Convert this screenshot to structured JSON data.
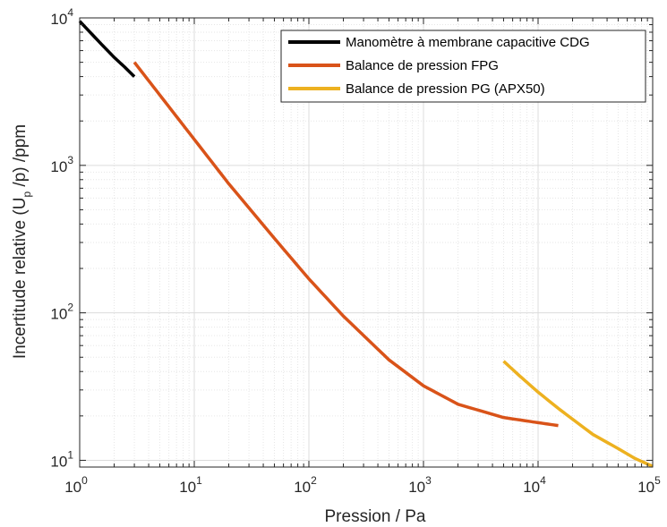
{
  "chart_data": {
    "type": "line",
    "xscale": "log",
    "yscale": "log",
    "xlim": [
      1,
      100000
    ],
    "ylim": [
      9,
      10000
    ],
    "xlabel": "Pression / Pa",
    "ylabel": {
      "prefix": "Incertitude relative (U",
      "subscript": "p",
      "suffix": " /p) /ppm"
    },
    "xticks": [
      {
        "base": "10",
        "exp": "0",
        "value": 1
      },
      {
        "base": "10",
        "exp": "1",
        "value": 10
      },
      {
        "base": "10",
        "exp": "2",
        "value": 100
      },
      {
        "base": "10",
        "exp": "3",
        "value": 1000
      },
      {
        "base": "10",
        "exp": "4",
        "value": 10000
      },
      {
        "base": "10",
        "exp": "5",
        "value": 100000
      }
    ],
    "yticks": [
      {
        "base": "10",
        "exp": "1",
        "value": 10
      },
      {
        "base": "10",
        "exp": "2",
        "value": 100
      },
      {
        "base": "10",
        "exp": "3",
        "value": 1000
      },
      {
        "base": "10",
        "exp": "4",
        "value": 10000
      }
    ],
    "grid": true,
    "legend_position": "top-right",
    "series": [
      {
        "name": "Manomètre à membrane capacitive CDG",
        "color": "#000000",
        "x": [
          1,
          1.5,
          2,
          2.5,
          3
        ],
        "y": [
          9500,
          6800,
          5400,
          4600,
          4000
        ]
      },
      {
        "name": "Balance de pression FPG",
        "color": "#D95319",
        "x": [
          3,
          5,
          10,
          20,
          50,
          100,
          200,
          500,
          1000,
          2000,
          5000,
          10000,
          15000
        ],
        "y": [
          5000,
          3000,
          1500,
          750,
          320,
          170,
          95,
          48,
          32,
          24,
          19.5,
          18,
          17.2
        ]
      },
      {
        "name": "Balance de pression PG (APX50)",
        "color": "#EDB120",
        "x": [
          5000,
          7000,
          10000,
          15000,
          20000,
          30000,
          50000,
          70000,
          100000
        ],
        "y": [
          47,
          37,
          29,
          22.5,
          19,
          15,
          12,
          10.3,
          9.1
        ]
      }
    ]
  }
}
